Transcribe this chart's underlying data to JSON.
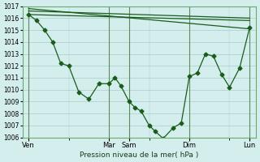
{
  "title": "",
  "xlabel": "Pression niveau de la mer( hPa )",
  "ylabel": "",
  "bg_color": "#d4eeee",
  "grid_color": "#aacccc",
  "line_color": "#1a5c1a",
  "ylim": [
    1006,
    1017
  ],
  "yticks": [
    1006,
    1007,
    1008,
    1009,
    1010,
    1011,
    1012,
    1013,
    1014,
    1015,
    1016,
    1017
  ],
  "xtick_labels": [
    "Ven",
    "Mar",
    "Sam",
    "Dim",
    "Lun"
  ],
  "xtick_positions": [
    0,
    4,
    5,
    8,
    11
  ],
  "flat_line1_x": [
    0,
    11
  ],
  "flat_line1_y": [
    1016.3,
    1015.8
  ],
  "flat_line2_x": [
    0,
    11
  ],
  "flat_line2_y": [
    1016.6,
    1016.0
  ],
  "flat_line3_x": [
    0,
    11
  ],
  "flat_line3_y": [
    1016.8,
    1015.1
  ],
  "main_x": [
    0,
    0.4,
    0.8,
    1.2,
    1.6,
    2.0,
    2.5,
    3.0,
    3.5,
    4.0,
    4.3,
    4.6,
    5.0,
    5.3,
    5.6,
    6.0,
    6.3,
    6.7,
    7.2,
    7.6,
    8.0,
    8.4,
    8.8,
    9.2,
    9.6,
    10.0,
    10.5,
    11.0
  ],
  "main_y": [
    1016.3,
    1015.8,
    1015.0,
    1014.0,
    1012.2,
    1012.0,
    1009.8,
    1009.2,
    1010.5,
    1010.5,
    1011.0,
    1010.3,
    1009.0,
    1008.5,
    1008.2,
    1007.0,
    1006.5,
    1005.9,
    1006.8,
    1007.2,
    1011.1,
    1011.4,
    1013.0,
    1012.8,
    1011.3,
    1010.2,
    1011.8,
    1015.2
  ]
}
